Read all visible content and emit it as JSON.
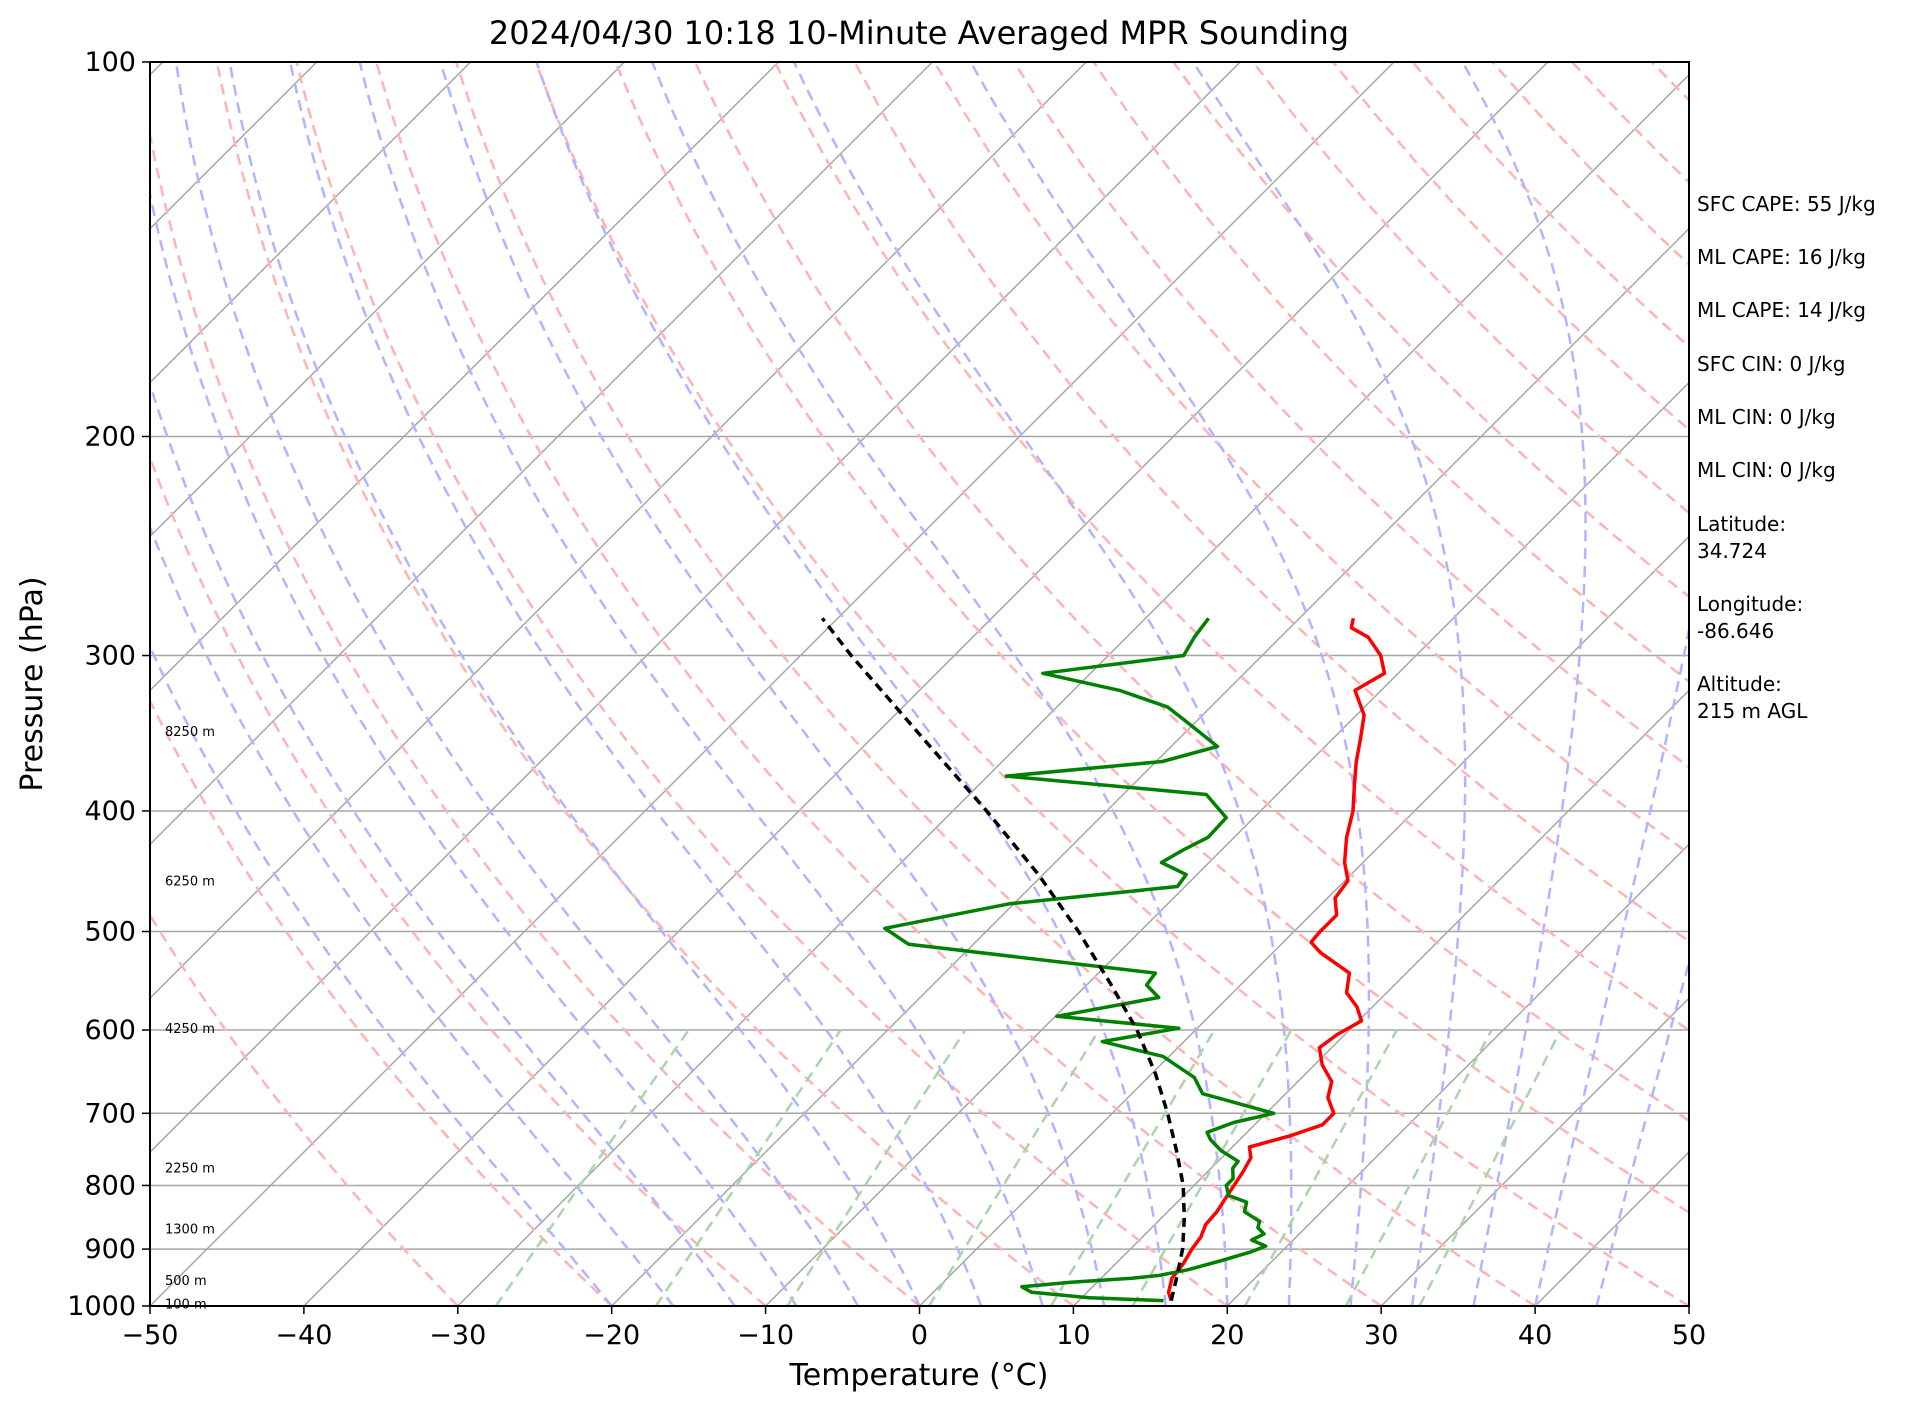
{
  "chart_data": {
    "type": "line",
    "title": "2024/04/30 10:18 10-Minute Averaged MPR Sounding",
    "xlabel": "Temperature (°C)",
    "ylabel": "Pressure (hPa)",
    "xlim": [
      -50,
      50
    ],
    "ylim": [
      1000,
      100
    ],
    "y_scale": "log",
    "skew_degrees": 45,
    "grid": true,
    "x_ticks": [
      "−50",
      "−40",
      "−30",
      "−20",
      "−10",
      "0",
      "10",
      "20",
      "30",
      "40",
      "50"
    ],
    "y_ticks": [
      "100",
      "200",
      "300",
      "400",
      "500",
      "600",
      "700",
      "800",
      "900",
      "1000"
    ],
    "height_labels": [
      {
        "text": "100 m",
        "p": 995
      },
      {
        "text": "500 m",
        "p": 953
      },
      {
        "text": "1300 m",
        "p": 866
      },
      {
        "text": "2250 m",
        "p": 774
      },
      {
        "text": "4250 m",
        "p": 598
      },
      {
        "text": "6250 m",
        "p": 455
      },
      {
        "text": "8250 m",
        "p": 345
      }
    ],
    "colors": {
      "temperature": "#ff0000",
      "dewpoint": "#008000",
      "parcel": "#000000",
      "isotherm": "#a6a6a6",
      "dry_adiabat": "#ffb3b3",
      "moist_adiabat": "#b3b3ff",
      "mixing_ratio": "#aad4aa"
    },
    "series": [
      {
        "key": "temperature",
        "points": [
          [
            990,
            16.0
          ],
          [
            975,
            15.3
          ],
          [
            950,
            14.6
          ],
          [
            925,
            14.4
          ],
          [
            900,
            14.0
          ],
          [
            880,
            13.8
          ],
          [
            860,
            13.3
          ],
          [
            840,
            13.2
          ],
          [
            820,
            12.9
          ],
          [
            800,
            12.6
          ],
          [
            780,
            12.3
          ],
          [
            760,
            11.9
          ],
          [
            745,
            11.1
          ],
          [
            730,
            13.0
          ],
          [
            715,
            14.4
          ],
          [
            700,
            14.4
          ],
          [
            680,
            13.0
          ],
          [
            660,
            12.2
          ],
          [
            640,
            10.5
          ],
          [
            620,
            9.2
          ],
          [
            605,
            9.5
          ],
          [
            590,
            10.2
          ],
          [
            575,
            9.0
          ],
          [
            560,
            7.4
          ],
          [
            540,
            6.3
          ],
          [
            520,
            3.1
          ],
          [
            510,
            1.8
          ],
          [
            500,
            1.7
          ],
          [
            485,
            1.7
          ],
          [
            470,
            0.5
          ],
          [
            455,
            0.2
          ],
          [
            440,
            -1.2
          ],
          [
            420,
            -2.7
          ],
          [
            400,
            -4.0
          ],
          [
            380,
            -5.7
          ],
          [
            365,
            -7.0
          ],
          [
            350,
            -8.2
          ],
          [
            335,
            -9.5
          ],
          [
            320,
            -11.7
          ],
          [
            310,
            -10.9
          ],
          [
            300,
            -12.3
          ],
          [
            290,
            -14.3
          ],
          [
            285,
            -16.0
          ],
          [
            280,
            -16.5
          ]
        ]
      },
      {
        "key": "dewpoint",
        "points": [
          [
            990,
            15.5
          ],
          [
            985,
            10.5
          ],
          [
            975,
            6.4
          ],
          [
            965,
            5.4
          ],
          [
            957,
            8.3
          ],
          [
            950,
            12.0
          ],
          [
            945,
            13.6
          ],
          [
            935,
            15.1
          ],
          [
            920,
            16.6
          ],
          [
            905,
            18.0
          ],
          [
            895,
            18.6
          ],
          [
            885,
            17.3
          ],
          [
            875,
            17.7
          ],
          [
            865,
            16.9
          ],
          [
            855,
            16.6
          ],
          [
            840,
            15.0
          ],
          [
            825,
            14.5
          ],
          [
            815,
            12.9
          ],
          [
            800,
            12.1
          ],
          [
            790,
            12.1
          ],
          [
            775,
            11.4
          ],
          [
            765,
            11.3
          ],
          [
            750,
            9.5
          ],
          [
            735,
            8.1
          ],
          [
            725,
            7.4
          ],
          [
            712,
            8.5
          ],
          [
            700,
            10.5
          ],
          [
            675,
            4.6
          ],
          [
            655,
            3.0
          ],
          [
            630,
            -0.4
          ],
          [
            613,
            -5.3
          ],
          [
            598,
            -1.2
          ],
          [
            585,
            -9.9
          ],
          [
            565,
            -4.5
          ],
          [
            552,
            -6.1
          ],
          [
            540,
            -6.3
          ],
          [
            512,
            -24.2
          ],
          [
            497,
            -26.8
          ],
          [
            475,
            -20.3
          ],
          [
            460,
            -10.5
          ],
          [
            450,
            -10.7
          ],
          [
            440,
            -13.1
          ],
          [
            430,
            -12.5
          ],
          [
            420,
            -11.7
          ],
          [
            405,
            -11.8
          ],
          [
            388,
            -14.6
          ],
          [
            375,
            -28.8
          ],
          [
            365,
            -19.6
          ],
          [
            355,
            -17.0
          ],
          [
            340,
            -20.4
          ],
          [
            330,
            -22.8
          ],
          [
            320,
            -27.0
          ],
          [
            310,
            -33.1
          ],
          [
            300,
            -25.1
          ],
          [
            290,
            -25.6
          ],
          [
            280,
            -25.9
          ]
        ]
      },
      {
        "key": "parcel",
        "dashed": true,
        "points": [
          [
            990,
            16.0
          ],
          [
            950,
            14.9
          ],
          [
            900,
            13.4
          ],
          [
            850,
            11.5
          ],
          [
            800,
            9.3
          ],
          [
            750,
            6.6
          ],
          [
            700,
            3.6
          ],
          [
            650,
            0.2
          ],
          [
            600,
            -3.8
          ],
          [
            550,
            -8.6
          ],
          [
            500,
            -14.0
          ],
          [
            450,
            -20.3
          ],
          [
            400,
            -27.8
          ],
          [
            350,
            -36.6
          ],
          [
            300,
            -46.7
          ],
          [
            280,
            -51.0
          ]
        ]
      }
    ]
  },
  "side_text": {
    "sfc_cape": "SFC CAPE: 55 J/kg",
    "ml_cape_1": "ML CAPE: 16 J/kg",
    "ml_cape_2": "ML CAPE: 14 J/kg",
    "sfc_cin": "SFC CIN: 0 J/kg",
    "ml_cin_1": "ML CIN: 0 J/kg",
    "ml_cin_2": "ML CIN: 0 J/kg",
    "latitude_label": "Latitude:",
    "latitude_value": "34.724",
    "longitude_label": "Longitude:",
    "longitude_value": "-86.646",
    "altitude_label": "Altitude:",
    "altitude_value": "215 m AGL"
  }
}
